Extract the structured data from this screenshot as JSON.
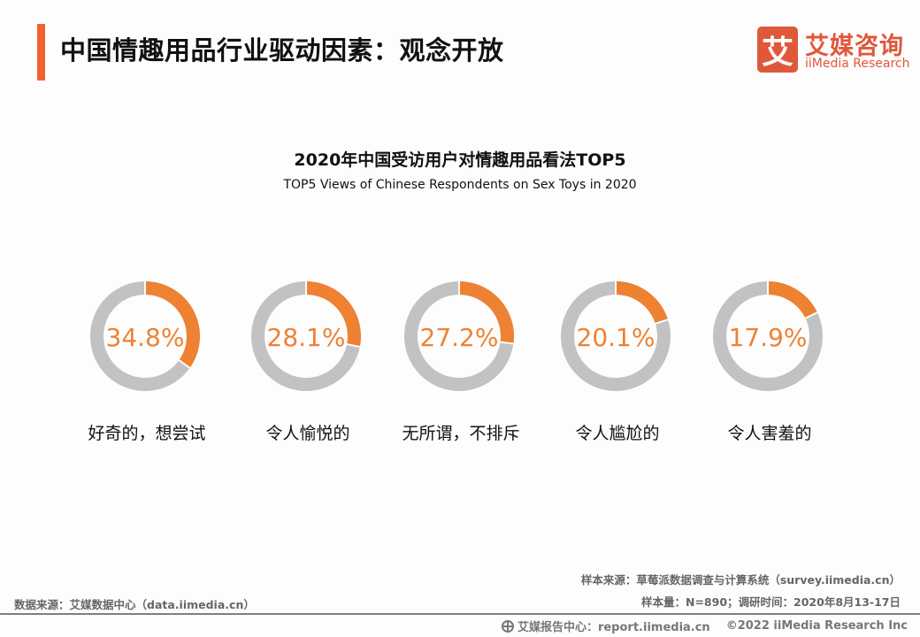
{
  "header": {
    "title": "中国情趣用品行业驱动因素：观念开放",
    "accent_color": "#f0622f"
  },
  "logo": {
    "mark": "艾",
    "cn": "艾媒咨询",
    "en": "iiMedia Research",
    "color": "#e0583a"
  },
  "chart_data": {
    "type": "pie",
    "title": "2020年中国受访用户对情趣用品看法TOP5",
    "subtitle": "TOP5 Views of Chinese Respondents on Sex Toys in 2020",
    "categories": [
      "好奇的，想尝试",
      "令人愉悦的",
      "无所谓，不排斥",
      "令人尴尬的",
      "令人害羞的"
    ],
    "values": [
      34.8,
      28.1,
      27.2,
      20.1,
      17.9
    ],
    "value_labels": [
      "34.8%",
      "28.1%",
      "27.2%",
      "20.1%",
      "17.9%"
    ],
    "unit": "%",
    "style": "donut",
    "colors": {
      "highlight": "#ef8132",
      "rest": "#c2c1c3"
    }
  },
  "sources": {
    "data_source": "数据来源：艾媒数据中心（data.iimedia.cn）",
    "sample_source": "样本来源：草莓派数据调查与计算系统（survey.iimedia.cn）",
    "sample_info": "样本量：N=890；调研时间：2020年8月13-17日"
  },
  "footer": {
    "report_center": "艾媒报告中心：report.iimedia.cn",
    "copyright": "©2022  iiMedia Research  Inc"
  }
}
